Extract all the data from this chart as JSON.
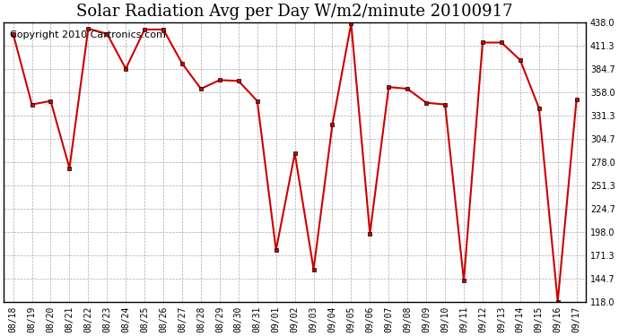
{
  "title": "Solar Radiation Avg per Day W/m2/minute 20100917",
  "copyright": "Copyright 2010 Cartronics.com",
  "labels": [
    "08/18",
    "08/19",
    "08/20",
    "08/21",
    "08/22",
    "08/23",
    "08/24",
    "08/25",
    "08/26",
    "08/27",
    "08/28",
    "08/29",
    "08/30",
    "08/31",
    "09/01",
    "09/02",
    "09/03",
    "09/04",
    "09/05",
    "09/06",
    "09/07",
    "09/08",
    "09/09",
    "09/10",
    "09/11",
    "09/12",
    "09/13",
    "09/14",
    "09/15",
    "09/16",
    "09/17"
  ],
  "values": [
    425,
    344,
    348,
    271,
    431,
    425,
    385,
    430,
    430,
    391,
    362,
    372,
    371,
    348,
    177,
    288,
    155,
    321,
    437,
    196,
    364,
    362,
    346,
    344,
    142,
    415,
    415,
    395,
    340,
    118,
    350
  ],
  "ymin": 118.0,
  "ymax": 438.0,
  "yticks": [
    118.0,
    144.7,
    171.3,
    198.0,
    224.7,
    251.3,
    278.0,
    304.7,
    331.3,
    358.0,
    384.7,
    411.3,
    438.0
  ],
  "line_color": "#cc0000",
  "bg_color": "#ffffff",
  "grid_color": "#aaaaaa",
  "title_fontsize": 13,
  "copyright_fontsize": 8
}
